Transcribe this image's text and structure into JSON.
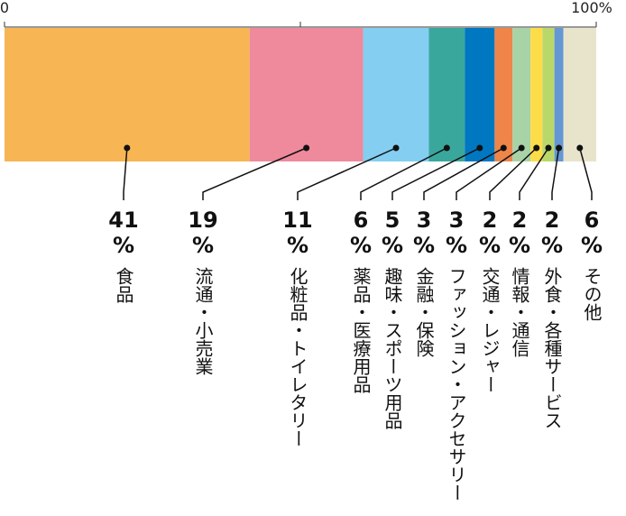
{
  "chart_data": {
    "type": "bar",
    "orientation": "horizontal-stacked-100",
    "xlim": [
      0,
      100
    ],
    "ticks": [
      "0",
      "",
      "100%"
    ],
    "unit": "%",
    "grid": false,
    "legend": "none",
    "categories": [
      "食品",
      "流通・小売業",
      "化粧品・トイレタリー",
      "薬品・医療用品",
      "趣味・スポーツ用品",
      "金融・保険",
      "ファッション・アクセサリー",
      "交通・レジャー",
      "情報・通信",
      "外食・各種サービス",
      "その他"
    ],
    "values": [
      41,
      19,
      11,
      6,
      5,
      3,
      3,
      2,
      2,
      2,
      6
    ],
    "extra_segments": [
      1,
      1,
      1
    ],
    "colors": [
      "#F7B653",
      "#EE8A9B",
      "#84CEF2",
      "#3AA79C",
      "#0077C1",
      "#EF8549",
      "#A8D3A6",
      "#FDDC4A",
      "#BAD86A",
      "#6497D4",
      "#E8E4CB"
    ]
  }
}
